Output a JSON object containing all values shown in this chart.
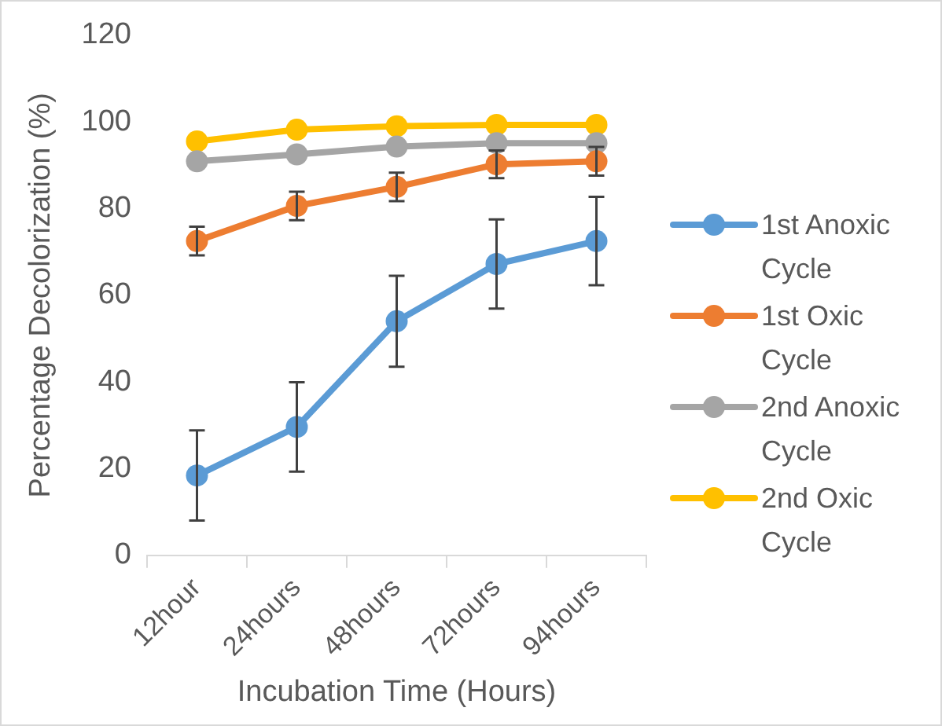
{
  "chart_data": {
    "type": "line",
    "xlabel": "Incubation Time (Hours)",
    "ylabel": "Percentage Decolorization (%)",
    "categories": [
      "12hour",
      "24hours",
      "48hours",
      "72hours",
      "94hours"
    ],
    "ylim": [
      0,
      120
    ],
    "yticks": [
      0,
      20,
      40,
      60,
      80,
      100,
      120
    ],
    "grid": false,
    "legend": "right",
    "marker": "circle",
    "series": [
      {
        "name": "1st Anoxic Cycle",
        "color": "#5b9bd5",
        "values": [
          18.4,
          29.6,
          54,
          67.2,
          72.5
        ],
        "errors": [
          10.4,
          10.3,
          10.5,
          10.3,
          10.2
        ]
      },
      {
        "name": "1st Oxic Cycle",
        "color": "#ed7d31",
        "values": [
          72.5,
          80.6,
          85,
          90.2,
          90.9
        ],
        "errors": [
          3.3,
          3.3,
          3.3,
          3.2,
          3.3
        ]
      },
      {
        "name": "2nd Anoxic Cycle",
        "color": "#a5a5a5",
        "values": [
          90.9,
          92.5,
          94.3,
          95.1,
          95.1
        ]
      },
      {
        "name": "2nd Oxic Cycle",
        "color": "#ffc000",
        "values": [
          95.5,
          98.2,
          99,
          99.3,
          99.3
        ]
      }
    ]
  }
}
